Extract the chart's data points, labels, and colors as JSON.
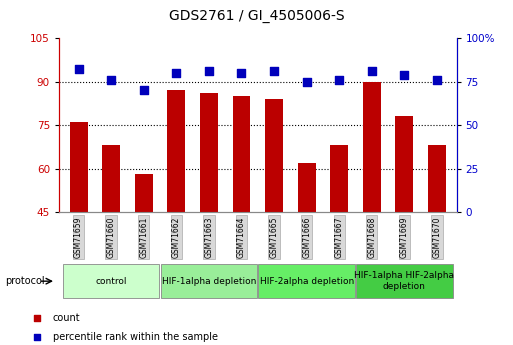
{
  "title": "GDS2761 / GI_4505006-S",
  "samples": [
    "GSM71659",
    "GSM71660",
    "GSM71661",
    "GSM71662",
    "GSM71663",
    "GSM71664",
    "GSM71665",
    "GSM71666",
    "GSM71667",
    "GSM71668",
    "GSM71669",
    "GSM71670"
  ],
  "counts": [
    76,
    68,
    58,
    87,
    86,
    85,
    84,
    62,
    68,
    90,
    78,
    68
  ],
  "percentile_ranks": [
    82,
    76,
    70,
    80,
    81,
    80,
    81,
    75,
    76,
    81,
    79,
    76
  ],
  "ylim_left": [
    45,
    105
  ],
  "ylim_right": [
    0,
    100
  ],
  "yticks_left": [
    45,
    60,
    75,
    90,
    105
  ],
  "ytick_labels_left": [
    "45",
    "60",
    "75",
    "90",
    "105"
  ],
  "yticks_right": [
    0,
    25,
    50,
    75,
    100
  ],
  "ytick_labels_right": [
    "0",
    "25",
    "50",
    "75",
    "100%"
  ],
  "bar_color": "#bb0000",
  "dot_color": "#0000bb",
  "grid_color": "#000000",
  "group_spans": [
    {
      "start": 0,
      "end": 2,
      "label": "control",
      "color": "#ccffcc"
    },
    {
      "start": 3,
      "end": 5,
      "label": "HIF-1alpha depletion",
      "color": "#99ee99"
    },
    {
      "start": 6,
      "end": 8,
      "label": "HIF-2alpha depletion",
      "color": "#66ee66"
    },
    {
      "start": 9,
      "end": 11,
      "label": "HIF-1alpha HIF-2alpha\ndepletion",
      "color": "#44cc44"
    }
  ],
  "bar_width": 0.55,
  "dot_size": 28,
  "background_color": "#ffffff",
  "tick_color_left": "#cc0000",
  "tick_color_right": "#0000cc",
  "spine_color": "#888888",
  "label_fontsize": 7,
  "tick_fontsize": 7.5,
  "sample_fontsize": 5.5,
  "group_fontsize": 6.5,
  "title_fontsize": 10
}
